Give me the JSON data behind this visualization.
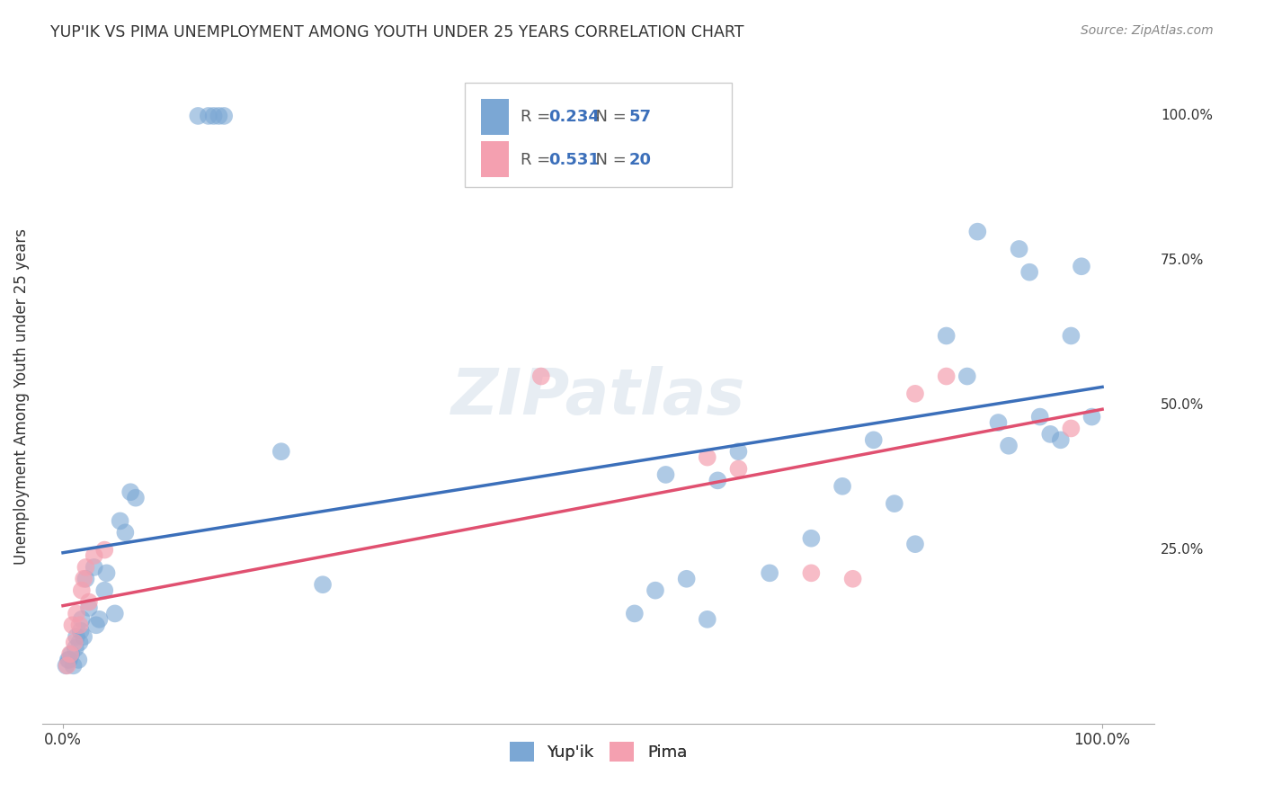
{
  "title": "YUP'IK VS PIMA UNEMPLOYMENT AMONG YOUTH UNDER 25 YEARS CORRELATION CHART",
  "source": "Source: ZipAtlas.com",
  "ylabel": "Unemployment Among Youth under 25 years",
  "xlabel": "",
  "background_color": "#ffffff",
  "grid_color": "#cccccc",
  "watermark": "ZIPatlas",
  "yupik_color": "#7ba7d4",
  "pima_color": "#f4a0b0",
  "yupik_line_color": "#3b6fba",
  "pima_line_color": "#e05070",
  "R_yupik": 0.234,
  "N_yupik": 57,
  "R_pima": 0.531,
  "N_pima": 20,
  "yupik_x": [
    0.003,
    0.005,
    0.006,
    0.008,
    0.01,
    0.012,
    0.013,
    0.015,
    0.016,
    0.017,
    0.018,
    0.02,
    0.022,
    0.025,
    0.03,
    0.032,
    0.035,
    0.04,
    0.042,
    0.05,
    0.055,
    0.06,
    0.065,
    0.07,
    0.13,
    0.14,
    0.145,
    0.15,
    0.155,
    0.21,
    0.25,
    0.55,
    0.57,
    0.58,
    0.6,
    0.62,
    0.63,
    0.65,
    0.68,
    0.72,
    0.75,
    0.78,
    0.8,
    0.82,
    0.85,
    0.87,
    0.88,
    0.9,
    0.91,
    0.92,
    0.93,
    0.94,
    0.95,
    0.96,
    0.97,
    0.98,
    0.99
  ],
  "yupik_y": [
    0.05,
    0.06,
    0.06,
    0.07,
    0.05,
    0.08,
    0.1,
    0.06,
    0.09,
    0.11,
    0.13,
    0.1,
    0.2,
    0.15,
    0.22,
    0.12,
    0.13,
    0.18,
    0.21,
    0.14,
    0.3,
    0.28,
    0.35,
    0.34,
    1.0,
    1.0,
    1.0,
    1.0,
    1.0,
    0.42,
    0.19,
    0.14,
    0.18,
    0.38,
    0.2,
    0.13,
    0.37,
    0.42,
    0.21,
    0.27,
    0.36,
    0.44,
    0.33,
    0.26,
    0.62,
    0.55,
    0.8,
    0.47,
    0.43,
    0.77,
    0.73,
    0.48,
    0.45,
    0.44,
    0.62,
    0.74,
    0.48
  ],
  "pima_x": [
    0.004,
    0.007,
    0.009,
    0.011,
    0.013,
    0.016,
    0.018,
    0.02,
    0.022,
    0.025,
    0.03,
    0.04,
    0.46,
    0.62,
    0.65,
    0.72,
    0.76,
    0.82,
    0.85,
    0.97
  ],
  "pima_y": [
    0.05,
    0.07,
    0.12,
    0.09,
    0.14,
    0.12,
    0.18,
    0.2,
    0.22,
    0.16,
    0.24,
    0.25,
    0.55,
    0.41,
    0.39,
    0.21,
    0.2,
    0.52,
    0.55,
    0.46
  ],
  "xlim": [
    0.0,
    1.0
  ],
  "ylim": [
    0.0,
    1.0
  ],
  "xtick_labels": [
    "0.0%",
    "100.0%"
  ],
  "ytick_labels": [
    "25.0%",
    "50.0%",
    "75.0%",
    "100.0%"
  ],
  "ytick_positions": [
    0.25,
    0.5,
    0.75,
    1.0
  ]
}
